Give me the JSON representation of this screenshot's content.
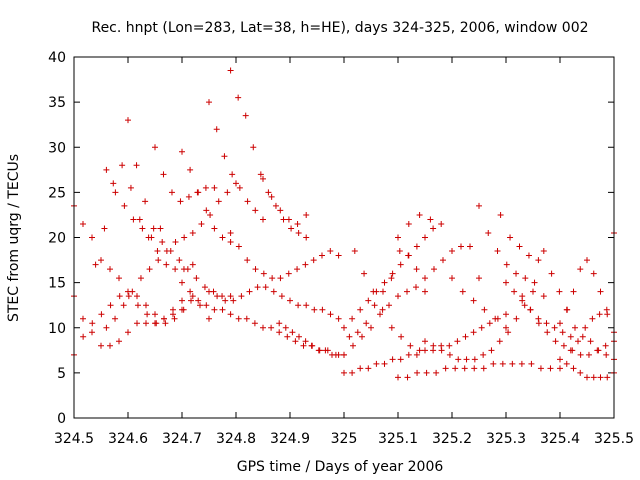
{
  "chart_data": {
    "type": "scatter",
    "title": "Rec. hnpt (Lon=283, Lat=38, h=HE), days 324-325, 2006, window 002",
    "xlabel": "GPS time / Days of year 2006",
    "ylabel": "STEC from uqrg / TECUs",
    "xlim": [
      324.5,
      325.5
    ],
    "ylim": [
      0,
      40
    ],
    "xticks": [
      "324.5",
      "324.6",
      "324.7",
      "324.8",
      "324.9",
      "325",
      "325.1",
      "325.2",
      "325.3",
      "325.4",
      "325.5"
    ],
    "yticks": [
      "0",
      "5",
      "10",
      "15",
      "20",
      "25",
      "30",
      "35",
      "40"
    ],
    "grid": false,
    "marker": "+",
    "color": "#cc0000",
    "tracks": [
      {
        "x0": 324.5,
        "x1": 324.75,
        "ys": [
          13.5,
          11.0,
          9.5,
          8.0,
          8.0,
          8.5,
          9.5,
          10.5,
          10.5,
          10.5,
          11.0,
          12.0,
          13.0,
          13.0,
          12.5,
          11.0
        ]
      },
      {
        "x0": 324.5,
        "x1": 324.72,
        "ys": [
          7.0,
          9.0,
          10.5,
          11.5,
          12.5,
          13.5,
          13.5,
          12.5,
          11.5,
          10.5,
          10.5,
          11.0,
          12.0,
          13.5
        ]
      },
      {
        "x0": 324.5,
        "x1": 324.7,
        "ys": [
          23.5,
          21.5,
          20.0,
          17.5,
          16.5,
          15.5,
          14.0,
          13.5,
          12.5,
          11.5,
          11.0,
          11.5,
          12.0
        ]
      },
      {
        "x0": 324.54,
        "x1": 324.72,
        "ys": [
          17.0,
          21.0,
          26.0,
          28.0,
          25.5,
          22.0,
          20.0,
          18.5,
          17.0,
          16.5,
          16.5,
          17.0
        ]
      },
      {
        "x0": 324.56,
        "x1": 324.66,
        "ys": [
          27.5,
          25.0,
          23.5,
          22.0,
          21.0,
          20.0,
          21.0
        ]
      },
      {
        "x0": 324.56,
        "x1": 324.8,
        "ys": [
          10.0,
          11.0,
          12.5,
          14.0,
          15.5,
          16.5,
          17.5,
          18.5,
          19.5,
          20.0,
          20.5,
          21.5,
          22.5,
          24.0,
          25.0,
          26.0
        ]
      },
      {
        "x0": 324.6,
        "x1": 324.79,
        "ys": [
          33.0,
          28.0,
          24.0,
          21.0,
          19.5,
          18.5,
          17.5,
          16.5,
          15.5,
          14.5,
          14.0,
          13.5,
          13.5
        ]
      },
      {
        "x0": 324.65,
        "x1": 324.76,
        "ys": [
          30.0,
          27.0,
          25.0,
          24.0,
          24.5,
          25.0,
          25.5,
          25.5
        ]
      },
      {
        "x0": 324.7,
        "x1": 324.79,
        "ys": [
          29.5,
          27.5,
          25.0,
          23.0,
          21.0,
          20.0,
          19.5
        ]
      },
      {
        "x0": 324.7,
        "x1": 325.0,
        "ys": [
          15.0,
          14.0,
          13.0,
          12.5,
          12.0,
          12.0,
          11.5,
          11.0,
          11.0,
          10.5,
          10.0,
          10.0,
          9.5,
          9.0,
          8.5,
          8.0,
          8.0,
          7.5,
          7.5,
          7.0,
          7.0
        ]
      },
      {
        "x0": 324.75,
        "x1": 324.85,
        "ys": [
          35.0,
          32.0,
          29.0,
          27.0,
          25.5,
          24.0,
          23.0,
          22.0
        ]
      },
      {
        "x0": 324.79,
        "x1": 324.93,
        "ys": [
          38.5,
          35.5,
          33.5,
          30.0,
          27.0,
          25.0,
          23.5,
          22.0,
          21.0,
          20.5,
          20.0
        ]
      },
      {
        "x0": 324.75,
        "x1": 324.99,
        "ys": [
          14.0,
          13.5,
          13.0,
          13.0,
          13.5,
          14.0,
          14.5,
          14.5,
          14.0,
          13.5,
          13.0,
          12.5,
          12.5,
          12.0,
          12.0,
          11.5,
          11.0
        ]
      },
      {
        "x0": 324.79,
        "x1": 324.99,
        "ys": [
          20.5,
          19.0,
          17.5,
          16.5,
          16.0,
          15.5,
          15.5,
          16.0,
          16.5,
          17.0,
          17.5,
          18.0,
          18.5,
          18.0
        ]
      },
      {
        "x0": 324.85,
        "x1": 324.93,
        "ys": [
          26.5,
          24.5,
          23.0,
          22.0,
          21.5,
          22.5
        ]
      },
      {
        "x0": 324.88,
        "x1": 324.99,
        "ys": [
          10.5,
          10.0,
          9.5,
          9.0,
          8.5,
          8.0,
          7.5,
          7.5,
          7.0,
          7.0
        ]
      },
      {
        "x0": 325.0,
        "x1": 325.3,
        "ys": [
          5.0,
          5.0,
          5.5,
          5.5,
          6.0,
          6.0,
          6.5,
          6.5,
          7.0,
          7.0,
          7.5,
          7.5,
          8.0,
          8.0,
          8.5,
          9.0,
          9.5,
          10.0,
          10.5,
          11.0,
          11.5
        ]
      },
      {
        "x0": 325.0,
        "x1": 325.25,
        "ys": [
          7.0,
          8.0,
          9.0,
          10.0,
          11.5,
          12.5,
          13.5,
          14.0,
          14.5,
          15.5,
          16.5,
          17.5,
          18.5,
          19.0,
          19.0,
          15.5
        ]
      },
      {
        "x0": 325.0,
        "x1": 325.18,
        "ys": [
          10.0,
          11.0,
          12.0,
          13.0,
          14.0,
          15.0,
          16.0,
          17.0,
          18.0,
          19.0,
          20.0,
          21.0,
          21.5
        ]
      },
      {
        "x0": 325.01,
        "x1": 325.15,
        "ys": [
          9.0,
          9.5,
          10.5,
          12.5,
          14.0,
          15.5,
          18.5,
          18.0,
          16.5,
          14.0
        ]
      },
      {
        "x0": 325.02,
        "x1": 325.14,
        "ys": [
          18.5,
          16.0,
          14.0,
          12.0,
          10.0,
          9.0,
          8.0,
          7.5
        ]
      },
      {
        "x0": 325.1,
        "x1": 325.16,
        "ys": [
          20.0,
          21.5,
          22.5,
          22.0
        ]
      },
      {
        "x0": 325.1,
        "x1": 325.4,
        "ys": [
          4.5,
          4.5,
          5.0,
          5.0,
          5.0,
          5.5,
          5.5,
          5.5,
          5.5,
          5.5,
          6.0,
          6.0,
          6.0,
          6.0,
          6.0,
          5.5,
          5.5,
          5.5
        ]
      },
      {
        "x0": 325.15,
        "x1": 325.35,
        "ys": [
          8.5,
          8.0,
          7.5,
          7.0,
          6.5,
          6.5,
          6.5,
          7.0,
          7.5,
          8.5,
          9.5,
          11.0,
          12.5,
          14.0
        ]
      },
      {
        "x0": 325.2,
        "x1": 325.3,
        "ys": [
          15.5,
          14.0,
          13.0,
          12.0,
          11.0,
          10.0
        ]
      },
      {
        "x0": 325.25,
        "x1": 325.37,
        "ys": [
          23.5,
          20.5,
          18.5,
          17.0,
          16.0,
          15.5,
          15.0,
          13.5
        ]
      },
      {
        "x0": 325.29,
        "x1": 325.36,
        "ys": [
          22.5,
          20.0,
          19.0,
          18.0,
          17.5
        ]
      },
      {
        "x0": 325.3,
        "x1": 325.42,
        "ys": [
          15.0,
          14.0,
          13.0,
          12.0,
          11.0,
          10.5,
          10.0,
          9.5,
          9.0
        ]
      },
      {
        "x0": 325.33,
        "x1": 325.5,
        "ys": [
          13.5,
          12.0,
          10.5,
          9.5,
          8.5,
          8.0,
          7.5,
          7.0,
          7.0,
          7.5,
          8.0,
          8.5
        ]
      },
      {
        "x0": 325.37,
        "x1": 325.5,
        "ys": [
          18.5,
          16.0,
          14.0,
          12.0,
          10.0,
          9.0,
          8.5,
          7.5,
          7.0,
          6.5
        ]
      },
      {
        "x0": 325.4,
        "x1": 325.5,
        "ys": [
          10.5,
          12.0,
          14.0,
          16.5,
          17.5,
          16.0,
          14.0,
          11.5,
          9.5
        ]
      },
      {
        "x0": 325.4,
        "x1": 325.5,
        "ys": [
          6.5,
          6.0,
          5.5,
          5.0,
          4.5,
          4.5,
          4.5,
          4.5,
          5.0
        ]
      },
      {
        "x0": 325.42,
        "x1": 325.5,
        "ys": [
          7.5,
          8.5,
          10.0,
          11.0,
          11.5,
          12.0,
          20.5
        ]
      }
    ]
  }
}
